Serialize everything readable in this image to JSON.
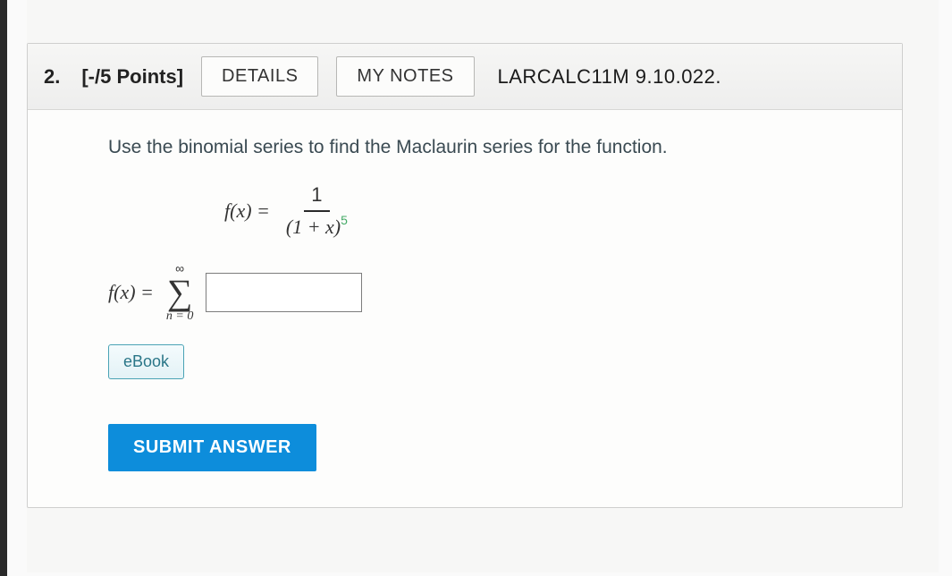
{
  "question": {
    "number": "2.",
    "points_label": "[-/5 Points]",
    "details_btn": "DETAILS",
    "notes_btn": "MY NOTES",
    "source_ref": "LARCALC11M 9.10.022.",
    "prompt": "Use the binomial series to find the Maclaurin series for the function.",
    "formula": {
      "lhs": "f(x) =",
      "numerator": "1",
      "denominator_base": "(1 + x)",
      "denominator_exp": "5"
    },
    "answer": {
      "lhs": "f(x) =",
      "sigma_upper": "∞",
      "sigma_lower": "n = 0",
      "input_value": ""
    },
    "ebook_label": "eBook",
    "submit_label": "SUBMIT ANSWER"
  },
  "colors": {
    "submit_bg": "#0d8ddb",
    "ebook_border": "#4aa3b5",
    "exp_color": "#4a9966"
  }
}
